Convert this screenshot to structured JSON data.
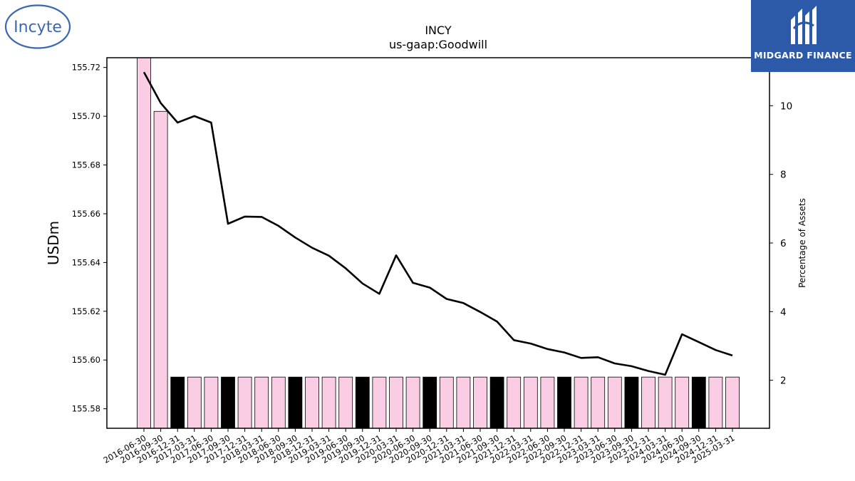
{
  "logos": {
    "left_text": "Incyte",
    "right_text": "MIDGARD FINANCE"
  },
  "colors": {
    "bar_pink": "#fbcde4",
    "bar_black": "#000000",
    "line": "#000000",
    "logo_right_bg": "#2c5aa8",
    "logo_left_blue": "#3a67b1"
  },
  "chart_data": {
    "type": "bar",
    "title": "INCY",
    "subtitle": "us-gaap:Goodwill",
    "ylabel": "USDm",
    "y2label": "Percentage of Assets",
    "ylim": [
      155.572,
      155.724
    ],
    "y2lim": [
      0.6,
      11.4
    ],
    "yticks": [
      155.58,
      155.6,
      155.62,
      155.64,
      155.66,
      155.68,
      155.7,
      155.72
    ],
    "y2ticks": [
      2,
      4,
      6,
      8,
      10
    ],
    "categories": [
      "2016-06-30",
      "2016-09-30",
      "2016-12-31",
      "2017-03-31",
      "2017-06-30",
      "2017-09-30",
      "2017-12-31",
      "2018-03-31",
      "2018-06-30",
      "2018-09-30",
      "2018-12-31",
      "2019-03-31",
      "2019-06-30",
      "2019-09-30",
      "2019-12-31",
      "2020-03-31",
      "2020-06-30",
      "2020-09-30",
      "2020-12-31",
      "2021-03-31",
      "2021-06-30",
      "2021-09-30",
      "2021-12-31",
      "2022-03-31",
      "2022-06-30",
      "2022-09-30",
      "2022-12-31",
      "2023-03-31",
      "2023-06-30",
      "2023-09-30",
      "2023-12-31",
      "2024-03-31",
      "2024-06-30",
      "2024-09-30",
      "2024-12-31",
      "2025-03-31"
    ],
    "series": [
      {
        "kind": "bar",
        "axis": "left",
        "values": [
          155.724,
          155.702,
          155.593,
          155.593,
          155.593,
          155.593,
          155.593,
          155.593,
          155.593,
          155.593,
          155.593,
          155.593,
          155.593,
          155.593,
          155.593,
          155.593,
          155.593,
          155.593,
          155.593,
          155.593,
          155.593,
          155.593,
          155.593,
          155.593,
          155.593,
          155.593,
          155.593,
          155.593,
          155.593,
          155.593,
          155.593,
          155.593,
          155.593,
          155.593,
          155.593,
          155.593
        ],
        "colors": [
          "pink",
          "pink",
          "black",
          "pink",
          "pink",
          "black",
          "pink",
          "pink",
          "pink",
          "black",
          "pink",
          "pink",
          "pink",
          "black",
          "pink",
          "pink",
          "pink",
          "black",
          "pink",
          "pink",
          "pink",
          "black",
          "pink",
          "pink",
          "pink",
          "black",
          "pink",
          "pink",
          "pink",
          "black",
          "pink",
          "pink",
          "pink",
          "black",
          "pink",
          "pink"
        ]
      },
      {
        "kind": "line",
        "axis": "right",
        "values": [
          10.98,
          10.08,
          9.51,
          9.7,
          9.51,
          6.56,
          6.77,
          6.76,
          6.5,
          6.16,
          5.86,
          5.63,
          5.26,
          4.82,
          4.52,
          5.64,
          4.84,
          4.7,
          4.37,
          4.25,
          3.99,
          3.71,
          3.17,
          3.07,
          2.91,
          2.81,
          2.65,
          2.67,
          2.49,
          2.41,
          2.27,
          2.16,
          3.34,
          3.11,
          2.88,
          2.72
        ]
      }
    ]
  }
}
